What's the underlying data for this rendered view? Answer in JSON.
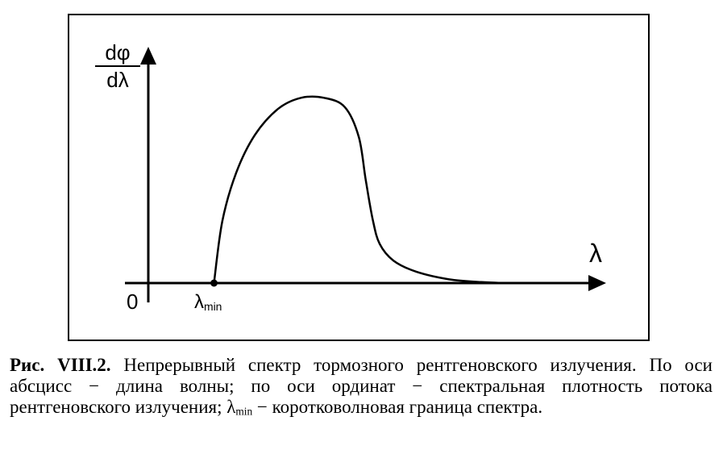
{
  "figure": {
    "y_axis_label_numerator": "dφ",
    "y_axis_label_denominator": "dλ",
    "x_axis_label": "λ",
    "origin_label": "0",
    "lambda_min_symbol": "λ",
    "lambda_min_subscript": "min"
  },
  "caption": {
    "figure_number": "Рис. VIII.2.",
    "text_before_symbol": "Непрерывный спектр тормозного рентгеновского излучения. По оси абсцисс − длина волны; по оси ординат − спектральная плотность потока рентгеновского излучения;",
    "symbol": "λ",
    "symbol_subscript": "min",
    "text_after_symbol": "− коротковолновая граница спектра."
  },
  "chart_data": {
    "type": "line",
    "title": "",
    "xlabel": "λ",
    "ylabel": "dφ/dλ",
    "grid": false,
    "legend": "none",
    "ticks_labeled": false,
    "xlim": [
      0,
      10
    ],
    "ylim": [
      0,
      1.1
    ],
    "series": [
      {
        "x": [
          1.42,
          1.6,
          1.9,
          2.3,
          2.8,
          3.3,
          3.8,
          4.25,
          4.55,
          4.7,
          4.85,
          5.0,
          5.3,
          5.8,
          6.5,
          7.2,
          7.7
        ],
        "y": [
          0.0,
          0.33,
          0.59,
          0.79,
          0.93,
          0.99,
          0.99,
          0.94,
          0.78,
          0.55,
          0.34,
          0.21,
          0.12,
          0.06,
          0.02,
          0.005,
          0.0
        ]
      }
    ],
    "annotations": [
      {
        "label": "λmin",
        "x": 1.42,
        "y": 0.0
      },
      {
        "label": "0",
        "x": 0,
        "y": 0
      }
    ]
  }
}
